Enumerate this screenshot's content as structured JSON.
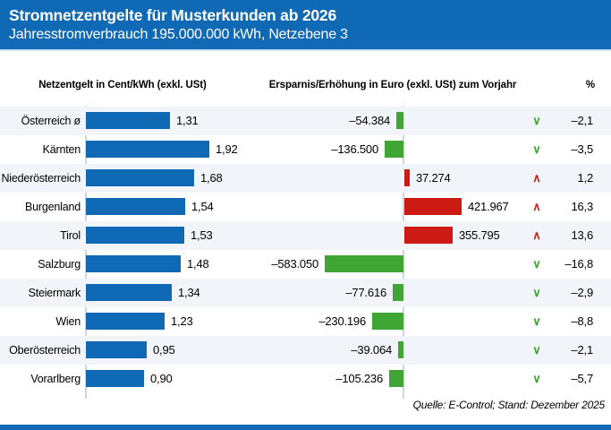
{
  "header": {
    "title": "Stromnetzentgelte für Musterkunden ab 2026",
    "subtitle": "Jahresstromverbrauch 195.000.000 kWh, Netzebene 3"
  },
  "columns": {
    "left": "Netzentgelt in Cent/kWh (exkl. USt)",
    "middle": "Ersparnis/Erhöhung in Euro (exkl. USt) zum Vorjahr",
    "percent": "%"
  },
  "source": "Quelle: E-Control; Stand: Dezember 2025",
  "icons": {
    "arrow_down": "∨",
    "arrow_up": "∧"
  },
  "colors": {
    "brand_blue": "#1069b4",
    "bar_blue": "#1069b4",
    "increase_red": "#cc1a14",
    "decrease_green": "#3fa535",
    "row_stripe": "#f1f4f9",
    "axis_line": "#ccd5e0"
  },
  "chart_data": {
    "type": "bar",
    "orientation": "horizontal",
    "title": "Stromnetzentgelte für Musterkunden ab 2026",
    "subtitle": "Jahresstromverbrauch 195.000.000 kWh, Netzebene 3",
    "legend_position": "none",
    "grid": false,
    "categories": [
      "Österreich ø",
      "Kärnten",
      "Niederösterreich",
      "Burgenland",
      "Tirol",
      "Salzburg",
      "Steiermark",
      "Wien",
      "Oberösterreich",
      "Vorarlberg"
    ],
    "series": [
      {
        "name": "Netzentgelt in Cent/kWh (exkl. USt)",
        "xlim": [
          0,
          1.92
        ],
        "values": [
          1.31,
          1.92,
          1.68,
          1.54,
          1.53,
          1.48,
          1.34,
          1.23,
          0.95,
          0.9
        ],
        "labels": [
          "1,31",
          "1,92",
          "1,68",
          "1,54",
          "1,53",
          "1,48",
          "1,34",
          "1,23",
          "0,95",
          "0,90"
        ]
      },
      {
        "name": "Ersparnis/Erhöhung in Euro (exkl. USt) zum Vorjahr",
        "xlim": [
          -583050,
          421967
        ],
        "values": [
          -54384,
          -136500,
          37274,
          421967,
          355795,
          -583050,
          -77616,
          -230196,
          -39064,
          -105236
        ],
        "labels": [
          "–54.384",
          "–136.500",
          "37.274",
          "421.967",
          "355.795",
          "–583.050",
          "–77.616",
          "–230.196",
          "–39.064",
          "–105.236"
        ]
      },
      {
        "name": "% zum Vorjahr",
        "values": [
          -2.1,
          -3.5,
          1.2,
          16.3,
          13.6,
          -16.8,
          -2.9,
          -8.8,
          -2.1,
          -5.7
        ],
        "labels": [
          "–2,1",
          "–3,5",
          "1,2",
          "16,3",
          "13,6",
          "–16,8",
          "–2,9",
          "–8,8",
          "–2,1",
          "–5,7"
        ]
      }
    ]
  }
}
